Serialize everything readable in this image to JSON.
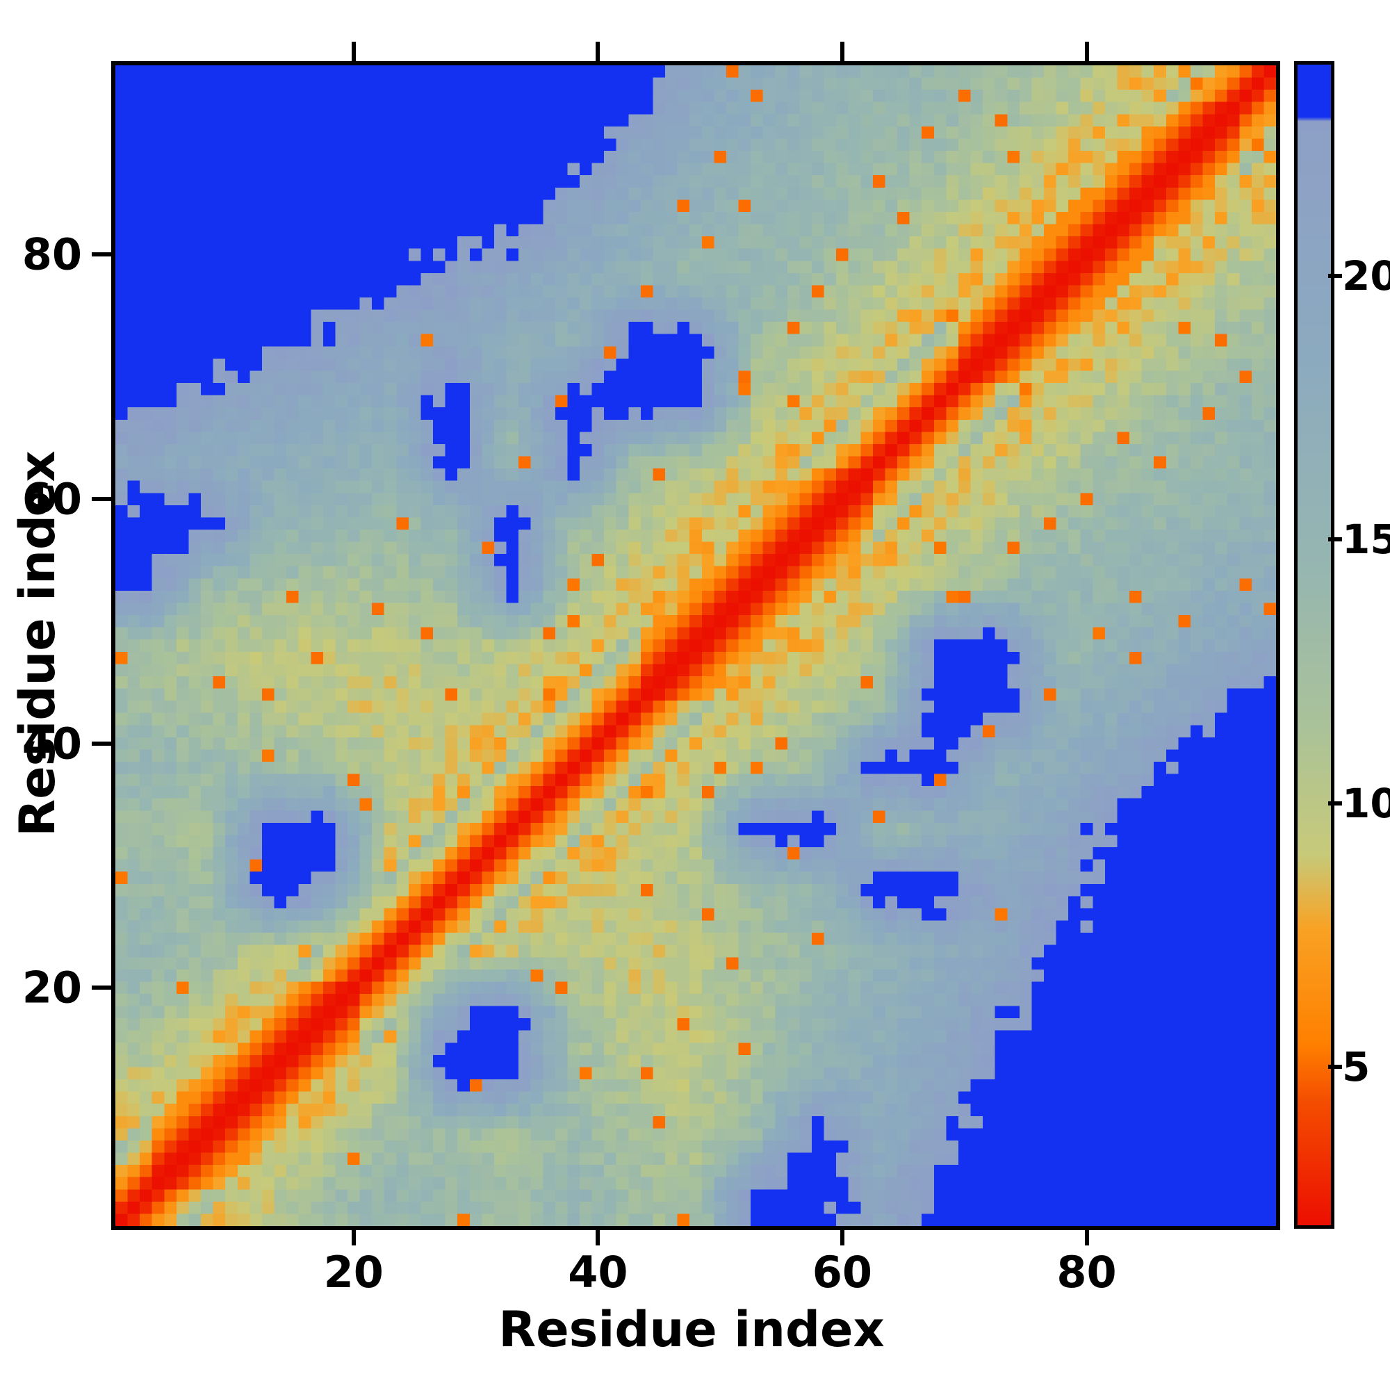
{
  "chart_data": {
    "type": "heatmap",
    "title": "",
    "xlabel": "Residue index",
    "ylabel": "Residue index",
    "n": 95,
    "x_ticks": [
      20,
      40,
      60,
      80
    ],
    "y_ticks": [
      20,
      40,
      60,
      80
    ],
    "colorbar_ticks": [
      5,
      10,
      15,
      20
    ],
    "vmin": 2,
    "vmax": 24,
    "cutoff": 23,
    "over_color": "#1431f2",
    "frame_color": "#000000",
    "background_color": "#ffffff",
    "color_stops": [
      [
        2.0,
        "#ec1000"
      ],
      [
        4.3,
        "#f44d00"
      ],
      [
        5.4,
        "#ff8000"
      ],
      [
        7.6,
        "#f9a224"
      ],
      [
        9.0,
        "#c8ca79"
      ],
      [
        11.5,
        "#aac29a"
      ],
      [
        14.5,
        "#96b6b1"
      ],
      [
        18.5,
        "#8caabf"
      ],
      [
        23.0,
        "#8d9fc7"
      ]
    ],
    "block_start": 3,
    "block_step": 5,
    "blocks_upper": [
      [
        5,
        7.5,
        10,
        13,
        15,
        14,
        13,
        15,
        13,
        12,
        25,
        25,
        20,
        25,
        25,
        25,
        25,
        25,
        25
      ],
      [
        5,
        7.5,
        10,
        13,
        13,
        12,
        14,
        12,
        11,
        14,
        25,
        18,
        22,
        25,
        25,
        25,
        25,
        25
      ],
      [
        5,
        7.5,
        10,
        25,
        25,
        13,
        11,
        10,
        13,
        16,
        18,
        20,
        25,
        25,
        25,
        25,
        25
      ],
      [
        5,
        7.5,
        25,
        25,
        12,
        10,
        10,
        12,
        15,
        17,
        19,
        22,
        25,
        25,
        25,
        25
      ],
      [
        5,
        7.5,
        10,
        11,
        9,
        10,
        12,
        14,
        16,
        18,
        20,
        25,
        25,
        25,
        25
      ],
      [
        5,
        7.5,
        9,
        10,
        11,
        13,
        15,
        25,
        25,
        20,
        22,
        25,
        25,
        25
      ],
      [
        5,
        7.5,
        9,
        11,
        25,
        25,
        14,
        16,
        18,
        20,
        25,
        25,
        25
      ],
      [
        5,
        7.5,
        9,
        11,
        13,
        25,
        25,
        16,
        18,
        20,
        25,
        25
      ],
      [
        5,
        7.5,
        9,
        11,
        13,
        25,
        25,
        16,
        18,
        20,
        25
      ],
      [
        5,
        7.5,
        9,
        11,
        25,
        25,
        14,
        16,
        18,
        20
      ],
      [
        5,
        7.5,
        9,
        11,
        13,
        15,
        15,
        16,
        18
      ],
      [
        5,
        7.5,
        9,
        11,
        13,
        14,
        15,
        16
      ],
      [
        5,
        7.5,
        9,
        11,
        13,
        14,
        15
      ],
      [
        5,
        7.5,
        9,
        11,
        13,
        14
      ],
      [
        5,
        7.5,
        9,
        11,
        13
      ],
      [
        5,
        7.5,
        9,
        11
      ],
      [
        5,
        7.5,
        9
      ],
      [
        5,
        7.5
      ],
      [
        5
      ]
    ],
    "chain": {
      "base": 1.0,
      "slope": 1.9,
      "helix_slope": 1.3,
      "helices": [
        [
          4,
          20
        ],
        [
          44,
          62
        ],
        [
          70,
          92
        ]
      ],
      "local_k": 6
    },
    "speckle_value": 5.0,
    "speckle_density": 0.012,
    "speckles": [
      [
        9,
        45
      ],
      [
        12,
        30
      ],
      [
        13,
        44
      ],
      [
        15,
        52
      ],
      [
        17,
        47
      ],
      [
        20,
        37
      ],
      [
        22,
        51
      ],
      [
        24,
        58
      ],
      [
        26,
        49
      ],
      [
        28,
        44
      ],
      [
        31,
        56
      ],
      [
        34,
        63
      ],
      [
        36,
        49
      ],
      [
        37,
        68
      ],
      [
        40,
        55
      ],
      [
        41,
        72
      ],
      [
        44,
        77
      ],
      [
        45,
        62
      ],
      [
        47,
        84
      ],
      [
        50,
        88
      ],
      [
        51,
        95
      ],
      [
        52,
        70
      ],
      [
        52,
        84
      ],
      [
        53,
        93
      ],
      [
        56,
        74
      ],
      [
        58,
        77
      ],
      [
        60,
        80
      ],
      [
        63,
        86
      ],
      [
        65,
        83
      ],
      [
        67,
        90
      ],
      [
        70,
        93
      ],
      [
        73,
        91
      ]
    ]
  }
}
